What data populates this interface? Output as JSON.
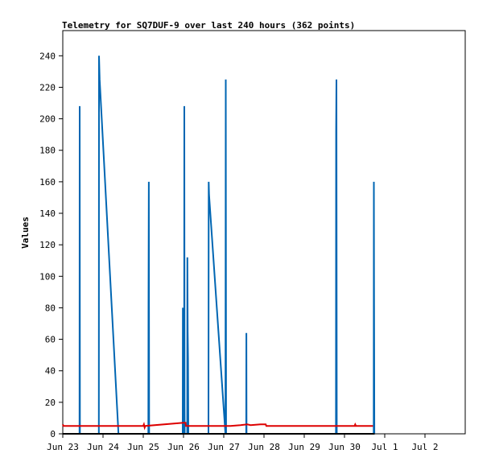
{
  "chart_data": {
    "type": "line",
    "title": "Telemetry for SQ7DUF-9 over last 240 hours (362 points)",
    "xlabel": "",
    "ylabel": "Values",
    "xlim": [
      0,
      240
    ],
    "ylim": [
      0,
      256
    ],
    "x_ticks": [
      {
        "label": "Jun 23",
        "x": 0
      },
      {
        "label": "Jun 24",
        "x": 24
      },
      {
        "label": "Jun 25",
        "x": 48
      },
      {
        "label": "Jun 26",
        "x": 72
      },
      {
        "label": "Jun 27",
        "x": 96
      },
      {
        "label": "Jun 28",
        "x": 120
      },
      {
        "label": "Jun 29",
        "x": 144
      },
      {
        "label": "Jun 30",
        "x": 168
      },
      {
        "label": "Jul 1",
        "x": 192
      },
      {
        "label": "Jul 2",
        "x": 216
      }
    ],
    "y_ticks": [
      0,
      20,
      40,
      60,
      80,
      100,
      120,
      140,
      160,
      180,
      200,
      220,
      240
    ],
    "grid": false,
    "legend": "none",
    "series": [
      {
        "color": "#0066b3",
        "points": [
          [
            0,
            0
          ],
          [
            10.0,
            0
          ],
          [
            10.1,
            208
          ],
          [
            10.2,
            0
          ],
          [
            21.5,
            0
          ],
          [
            21.6,
            240
          ],
          [
            22.0,
            225
          ],
          [
            33.2,
            0
          ],
          [
            51.0,
            0
          ],
          [
            51.1,
            80
          ],
          [
            51.3,
            160
          ],
          [
            51.5,
            0
          ],
          [
            71.5,
            0
          ],
          [
            71.6,
            80
          ],
          [
            71.8,
            0
          ],
          [
            72.4,
            0
          ],
          [
            72.5,
            208
          ],
          [
            72.6,
            17
          ],
          [
            72.7,
            0
          ],
          [
            74.2,
            0
          ],
          [
            74.3,
            112
          ],
          [
            74.5,
            65
          ],
          [
            74.7,
            48
          ],
          [
            74.9,
            0
          ],
          [
            86.9,
            0
          ],
          [
            87.0,
            160
          ],
          [
            87.2,
            152
          ],
          [
            97.0,
            0
          ],
          [
            97.2,
            225
          ],
          [
            97.4,
            0
          ],
          [
            109.4,
            0
          ],
          [
            109.5,
            64
          ],
          [
            109.6,
            0
          ],
          [
            162.9,
            0
          ],
          [
            163.0,
            192
          ],
          [
            163.2,
            225
          ],
          [
            163.4,
            0
          ],
          [
            185.4,
            0
          ],
          [
            185.5,
            160
          ],
          [
            185.6,
            97
          ],
          [
            185.8,
            0
          ]
        ]
      },
      {
        "color": "#dd0000",
        "points": [
          [
            0,
            6
          ],
          [
            0.4,
            5
          ],
          [
            48,
            5
          ],
          [
            48.4,
            6
          ],
          [
            48.8,
            4
          ],
          [
            49.2,
            5
          ],
          [
            72,
            7
          ],
          [
            73.2,
            7
          ],
          [
            73.4,
            5
          ],
          [
            100,
            5
          ],
          [
            106,
            5.5
          ],
          [
            110,
            6
          ],
          [
            112,
            5.5
          ],
          [
            118,
            6
          ],
          [
            121,
            6
          ],
          [
            121.4,
            5
          ],
          [
            184,
            5
          ],
          [
            174,
            5
          ],
          [
            174.4,
            6
          ],
          [
            174.8,
            5
          ],
          [
            185,
            5
          ]
        ]
      },
      {
        "color": "#000000",
        "points": [
          [
            0,
            0
          ],
          [
            186,
            0
          ]
        ]
      }
    ]
  }
}
